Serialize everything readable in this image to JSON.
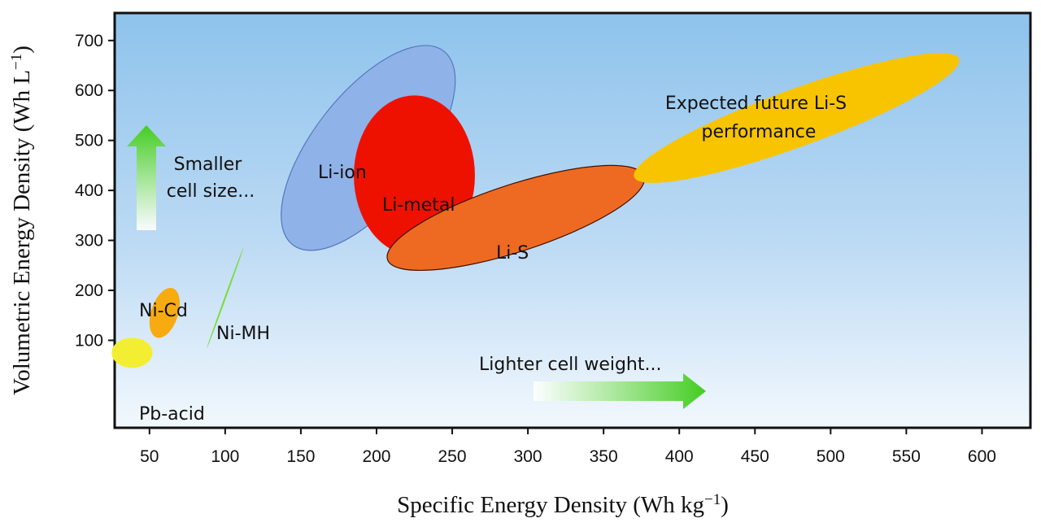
{
  "chart_data": {
    "type": "scatter",
    "title": "",
    "xlabel": "Specific Energy Density (Wh  kg−1)",
    "ylabel": "Volumetric Energy Density (Wh  L−1)",
    "xlim": [
      27,
      632
    ],
    "ylim": [
      -75,
      755
    ],
    "x_ticks": [
      50,
      100,
      150,
      200,
      250,
      300,
      350,
      400,
      450,
      500,
      550,
      600
    ],
    "y_ticks": [
      100,
      200,
      300,
      400,
      500,
      600,
      700
    ],
    "x_tick_labels": [
      "50",
      "100",
      "150",
      "200",
      "250",
      "300",
      "350",
      "400",
      "450",
      "500",
      "550",
      "600"
    ],
    "y_tick_labels": [
      "100",
      "200",
      "300",
      "400",
      "500",
      "600",
      "700"
    ],
    "grid": false,
    "regions": [
      {
        "label": "Li-ion",
        "x_range": [
          137,
          252
        ],
        "y_range": [
          280,
          690
        ],
        "color": "#8fb2e8"
      },
      {
        "label": "Li-metal",
        "x_range": [
          185,
          265
        ],
        "y_range": [
          270,
          590
        ],
        "color": "#ee1100"
      },
      {
        "label": "Li-S",
        "x_range": [
          207,
          377
        ],
        "y_range": [
          240,
          450
        ],
        "color": "#ee6a22"
      },
      {
        "label": "Expected future Li-S performance",
        "x_range": [
          370,
          585
        ],
        "y_range": [
          415,
          675
        ],
        "color": "#f8c400"
      },
      {
        "label": "Ni-MH",
        "x_range": [
          88,
          112
        ],
        "y_range": [
          85,
          285
        ],
        "color": "#78dd33"
      },
      {
        "label": "Ni-Cd",
        "x_range": [
          50,
          70
        ],
        "y_range": [
          105,
          205
        ],
        "color": "#f8aa11"
      },
      {
        "label": "Pb-acid",
        "x_range": [
          25,
          52
        ],
        "y_range": [
          45,
          105
        ],
        "color": "#f4ee33"
      }
    ],
    "annotations": [
      {
        "text": "Smaller cell size...",
        "lines": [
          "Smaller",
          "cell size..."
        ],
        "arrow": "up",
        "color": "#44cc22"
      },
      {
        "text": "Lighter cell weight...",
        "arrow": "right",
        "color": "#44cc22"
      }
    ]
  }
}
